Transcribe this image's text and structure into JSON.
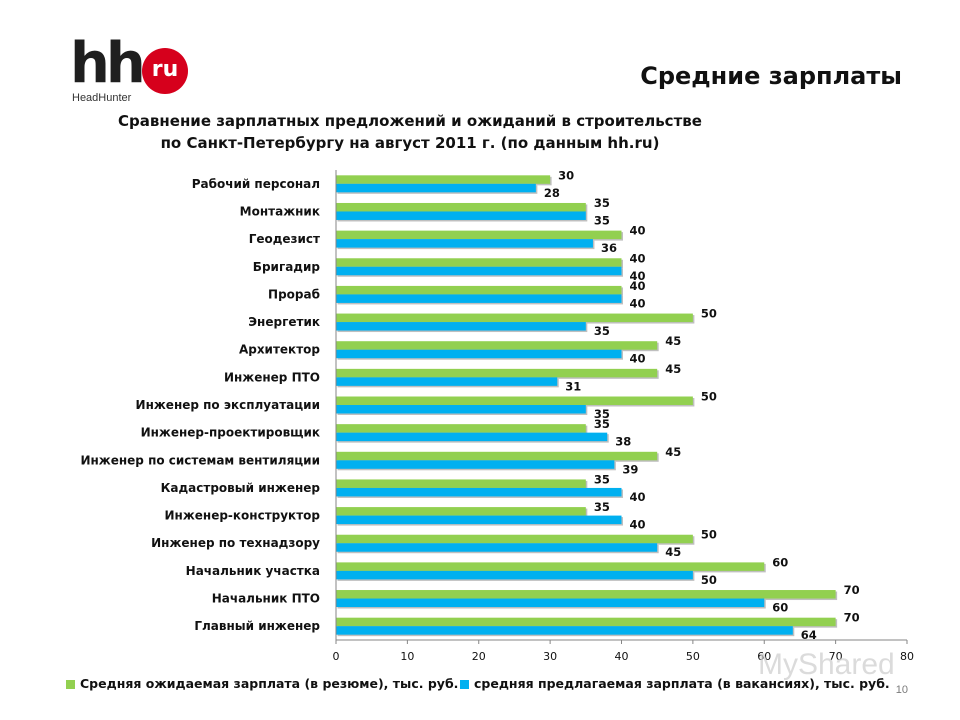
{
  "logo": {
    "brand": "hh",
    "badge": "ru",
    "subtitle": "HeadHunter"
  },
  "header": {
    "title": "Средние зарплаты"
  },
  "page_number": "10",
  "watermark": "MyShared",
  "colors": {
    "expected": "#92d050",
    "offered": "#00b0f0",
    "axis": "#868686",
    "text": "#111111"
  },
  "chart_data": {
    "type": "bar",
    "orientation": "horizontal",
    "title": "Сравнение зарплатных предложений и ожиданий в строительстве по Санкт-Петербургу на август 2011 г. (по данным hh.ru)",
    "title_lines": [
      "Сравнение зарплатных предложений и ожиданий в строительстве",
      "по Санкт-Петербургу на август 2011 г. (по данным hh.ru)"
    ],
    "categories": [
      "Рабочий персонал",
      "Монтажник",
      "Геодезист",
      "Бригадир",
      "Прораб",
      "Энергетик",
      "Архитектор",
      "Инженер ПТО",
      "Инженер по эксплуатации",
      "Инженер-проектировщик",
      "Инженер по системам вентиляции",
      "Кадастровый инженер",
      "Инженер-конструктор",
      "Инженер по технадзору",
      "Начальник участка",
      "Начальник ПТО",
      "Главный инженер"
    ],
    "series": [
      {
        "name": "Средняя ожидаемая зарплата (в резюме), тыс. руб.",
        "color": "#92d050",
        "values": [
          30,
          35,
          40,
          40,
          40,
          50,
          45,
          45,
          50,
          35,
          45,
          35,
          35,
          50,
          60,
          70,
          70
        ]
      },
      {
        "name": "средняя предлагаемая зарплата (в вакансиях), тыс. руб.",
        "color": "#00b0f0",
        "values": [
          28,
          35,
          36,
          40,
          40,
          35,
          40,
          31,
          35,
          38,
          39,
          40,
          40,
          45,
          50,
          60,
          64
        ]
      }
    ],
    "xlim": [
      0,
      80
    ],
    "xticks": [
      0,
      10,
      20,
      30,
      40,
      50,
      60,
      70,
      80
    ],
    "legend_position": "bottom",
    "grid": false
  }
}
